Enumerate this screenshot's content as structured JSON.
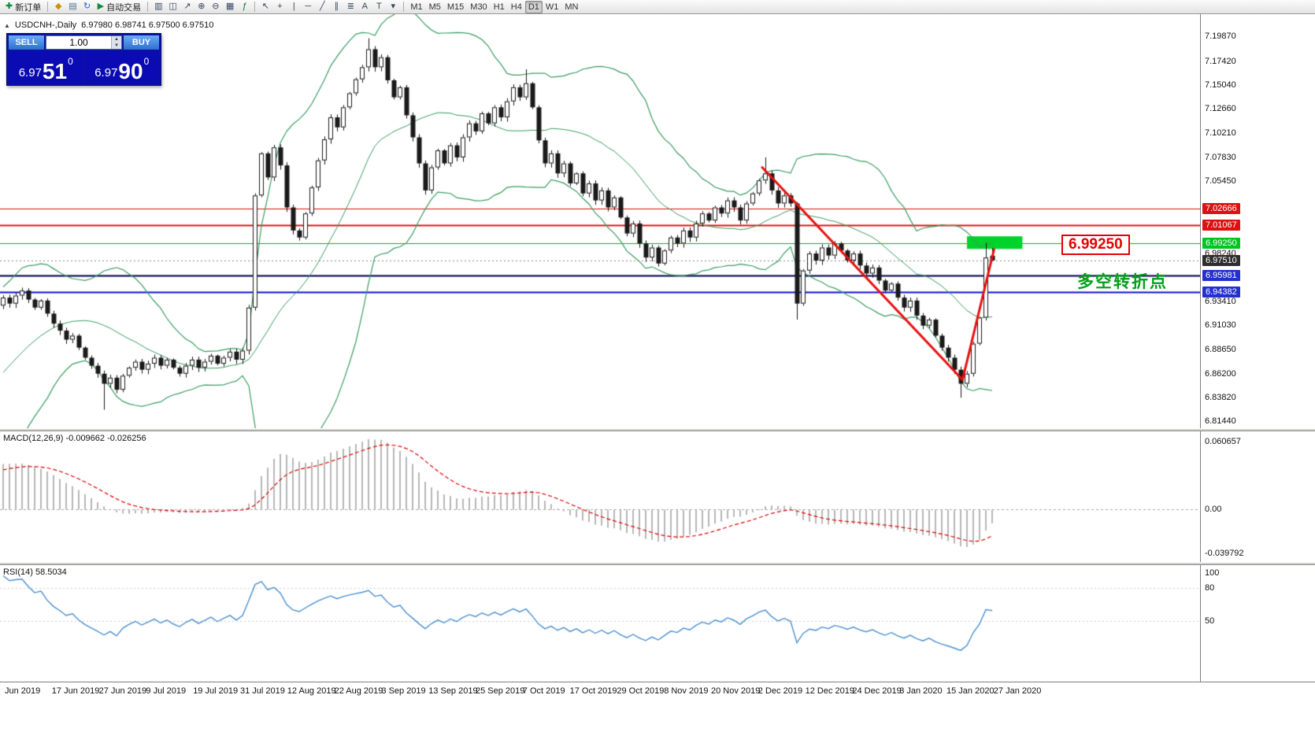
{
  "toolbar": {
    "new_order_label": "新订单",
    "auto_trading_label": "自动交易",
    "timeframes": [
      "M1",
      "M5",
      "M15",
      "M30",
      "H1",
      "H4",
      "D1",
      "W1",
      "MN"
    ],
    "active_timeframe": "D1"
  },
  "icons": {
    "new_order": "✚",
    "market_watch": "◆",
    "data_window": "▤",
    "refresh": "↻",
    "auto_trading_play": "▶",
    "bars_chart": "▥",
    "candle_chart": "◫",
    "line_chart": "↗",
    "zoom_in": "⊕",
    "zoom_out": "⊖",
    "grid": "▦",
    "indicators": "ƒ",
    "cursor": "↖",
    "crosshair": "+",
    "vertical_line": "|",
    "horizontal_line": "─",
    "trendline": "╱",
    "channel": "∥",
    "fibonacci": "≣",
    "text": "A",
    "text_label": "T",
    "shapes": "▾",
    "spinner_up": "▲",
    "spinner_down": "▼",
    "panel_toggle": "▲"
  },
  "chart": {
    "symbol_label": "USDCNH-,Daily",
    "ohlc_label": "6.97980 6.98741 6.97500 6.97510",
    "annotations": {
      "price_label": "6.99250",
      "turning_point": "多空转折点"
    }
  },
  "trade_panel": {
    "sell_label": "SELL",
    "buy_label": "BUY",
    "volume": "1.00",
    "sell_price": {
      "base": "6.97",
      "big": "51",
      "sup": "0"
    },
    "buy_price": {
      "base": "6.97",
      "big": "90",
      "sup": "0"
    }
  },
  "macd": {
    "label": "MACD(12,26,9)",
    "value_main": "-0.009662",
    "value_signal": "-0.026256",
    "axis": [
      {
        "label": "0.060657",
        "value": 0.060657
      },
      {
        "label": "0.00",
        "value": 0
      },
      {
        "label": "-0.039792",
        "value": -0.039792
      }
    ]
  },
  "rsi": {
    "label": "RSI(14)",
    "value": "58.5034",
    "axis": [
      {
        "label": "100",
        "value": 100
      },
      {
        "label": "80",
        "value": 80
      },
      {
        "label": "50",
        "value": 50
      }
    ]
  },
  "price_axis": {
    "ticks": [
      "7.19870",
      "7.17420",
      "7.15040",
      "7.12660",
      "7.10210",
      "7.07830",
      "7.05450",
      "6.98240",
      "6.93410",
      "6.91030",
      "6.88650",
      "6.86200",
      "6.83820",
      "6.81440"
    ],
    "tags": [
      {
        "label": "7.02666",
        "bg": "#dd1111",
        "fg": "#ffffff"
      },
      {
        "label": "7.01067",
        "bg": "#dd1111",
        "fg": "#ffffff"
      },
      {
        "label": "6.99250",
        "bg": "#00c420",
        "fg": "#ffffff"
      },
      {
        "label": "6.97510",
        "bg": "#2e2e2e",
        "fg": "#ffffff"
      },
      {
        "label": "6.95981",
        "bg": "#2430cc",
        "fg": "#ffffff"
      },
      {
        "label": "6.94382",
        "bg": "#2430cc",
        "fg": "#ffffff"
      }
    ]
  },
  "time_axis": {
    "labels": [
      "Jun 2019",
      "17 Jun 2019",
      "27 Jun 2019",
      "9 Jul 2019",
      "19 Jul 2019",
      "31 Jul 2019",
      "12 Aug 2019",
      "22 Aug 2019",
      "3 Sep 2019",
      "13 Sep 2019",
      "25 Sep 2019",
      "7 Oct 2019",
      "17 Oct 2019",
      "29 Oct 2019",
      "8 Nov 2019",
      "20 Nov 2019",
      "2 Dec 2019",
      "12 Dec 2019",
      "24 Dec 2019",
      "3 Jan 2020",
      "15 Jan 2020",
      "27 Jan 2020"
    ]
  },
  "chart_data": {
    "type": "candlestick",
    "symbol": "USDCNH",
    "timeframe": "Daily",
    "warmup_bars": 30,
    "price_ylim": [
      6.8076,
      7.221
    ],
    "macd_ylim": [
      -0.0473,
      0.0698
    ],
    "rsi_ylim": [
      -5,
      100.7
    ],
    "closes": [
      6.735,
      6.742,
      6.738,
      6.75,
      6.758,
      6.752,
      6.765,
      6.772,
      6.78,
      6.776,
      6.788,
      6.796,
      6.806,
      6.815,
      6.81,
      6.822,
      6.832,
      6.84,
      6.836,
      6.848,
      6.858,
      6.868,
      6.878,
      6.872,
      6.884,
      6.894,
      6.904,
      6.912,
      6.922,
      6.93,
      6.938,
      6.932,
      6.94,
      6.945,
      6.936,
      6.928,
      6.935,
      6.922,
      6.912,
      6.905,
      6.896,
      6.9,
      6.888,
      6.878,
      6.87,
      6.862,
      6.852,
      6.858,
      6.846,
      6.86,
      6.868,
      6.874,
      6.866,
      6.872,
      6.878,
      6.87,
      6.876,
      6.868,
      6.862,
      6.87,
      6.876,
      6.868,
      6.874,
      6.88,
      6.872,
      6.878,
      6.884,
      6.876,
      6.885,
      6.928,
      7.04,
      7.082,
      7.058,
      7.088,
      7.07,
      7.028,
      7.005,
      6.998,
      7.022,
      7.048,
      7.075,
      7.096,
      7.118,
      7.108,
      7.128,
      7.142,
      7.156,
      7.168,
      7.186,
      7.168,
      7.178,
      7.155,
      7.138,
      7.148,
      7.12,
      7.098,
      7.072,
      7.045,
      7.068,
      7.085,
      7.072,
      7.09,
      7.078,
      7.098,
      7.112,
      7.104,
      7.122,
      7.112,
      7.128,
      7.118,
      7.134,
      7.148,
      7.138,
      7.152,
      7.128,
      7.095,
      7.072,
      7.082,
      7.062,
      7.072,
      7.052,
      7.062,
      7.042,
      7.052,
      7.035,
      7.045,
      7.028,
      7.038,
      7.018,
      7.002,
      7.012,
      6.992,
      6.978,
      6.988,
      6.972,
      6.985,
      6.998,
      6.992,
      7.005,
      6.998,
      7.012,
      7.022,
      7.015,
      7.028,
      7.022,
      7.035,
      7.028,
      7.015,
      7.032,
      7.042,
      7.055,
      7.062,
      7.045,
      7.032,
      7.04,
      7.032,
      6.932,
      6.965,
      6.982,
      6.975,
      6.988,
      6.98,
      6.992,
      6.985,
      6.975,
      6.982,
      6.97,
      6.962,
      6.968,
      6.955,
      6.945,
      6.952,
      6.938,
      6.928,
      6.935,
      6.92,
      6.91,
      6.916,
      6.9,
      6.888,
      6.878,
      6.866,
      6.852,
      6.862,
      6.892,
      6.918,
      6.978,
      6.9751
    ],
    "overrides": {
      "46": {
        "l": 6.826
      },
      "88": {
        "h": 7.197
      },
      "113": {
        "h": 7.166
      },
      "151": {
        "h": 7.078
      },
      "156": {
        "l": 6.916
      },
      "182": {
        "l": 6.838
      },
      "186": {
        "h": 6.9927
      },
      "187": {
        "o": 6.9798,
        "h": 6.98741,
        "l": 6.975
      }
    },
    "indicators": {
      "bollinger": {
        "period": 20,
        "deviation": 2,
        "color": "#3c9e63"
      },
      "macd": {
        "fast": 12,
        "slow": 26,
        "signal": 9,
        "hist_color": "#b8b8b8",
        "signal_color": "#e00000"
      },
      "rsi": {
        "period": 14,
        "color": "#4a90d2",
        "levels": [
          80,
          50
        ]
      }
    },
    "hlines": [
      {
        "price": 7.02666,
        "color": "#e01010",
        "width": 1,
        "style": "solid"
      },
      {
        "price": 7.01067,
        "color": "#e01010",
        "width": 2,
        "style": "solid"
      },
      {
        "price": 6.9925,
        "color": "#00b41e",
        "width": 1,
        "style": "solid"
      },
      {
        "price": 6.9751,
        "color": "#8a8a8a",
        "width": 1,
        "style": "dot"
      },
      {
        "price": 6.95981,
        "color": "#00004b",
        "width": 2,
        "style": "solid"
      },
      {
        "price": 6.94382,
        "color": "#0f0fd6",
        "width": 2,
        "style": "solid"
      }
    ],
    "trendlines": [
      {
        "from": {
          "index": 120.5,
          "price": 7.068
        },
        "to": {
          "index": 152.3,
          "price": 6.856
        },
        "color": "#e81010",
        "width": 3
      },
      {
        "from": {
          "index": 152.3,
          "price": 6.856
        },
        "to": {
          "index": 157.3,
          "price": 6.986
        },
        "color": "#e81010",
        "width": 3
      }
    ],
    "rect": {
      "from_index": 153,
      "to_index": 161.8,
      "top_price": 6.9992,
      "bottom_price": 6.9866,
      "color": "#00d42a"
    }
  }
}
